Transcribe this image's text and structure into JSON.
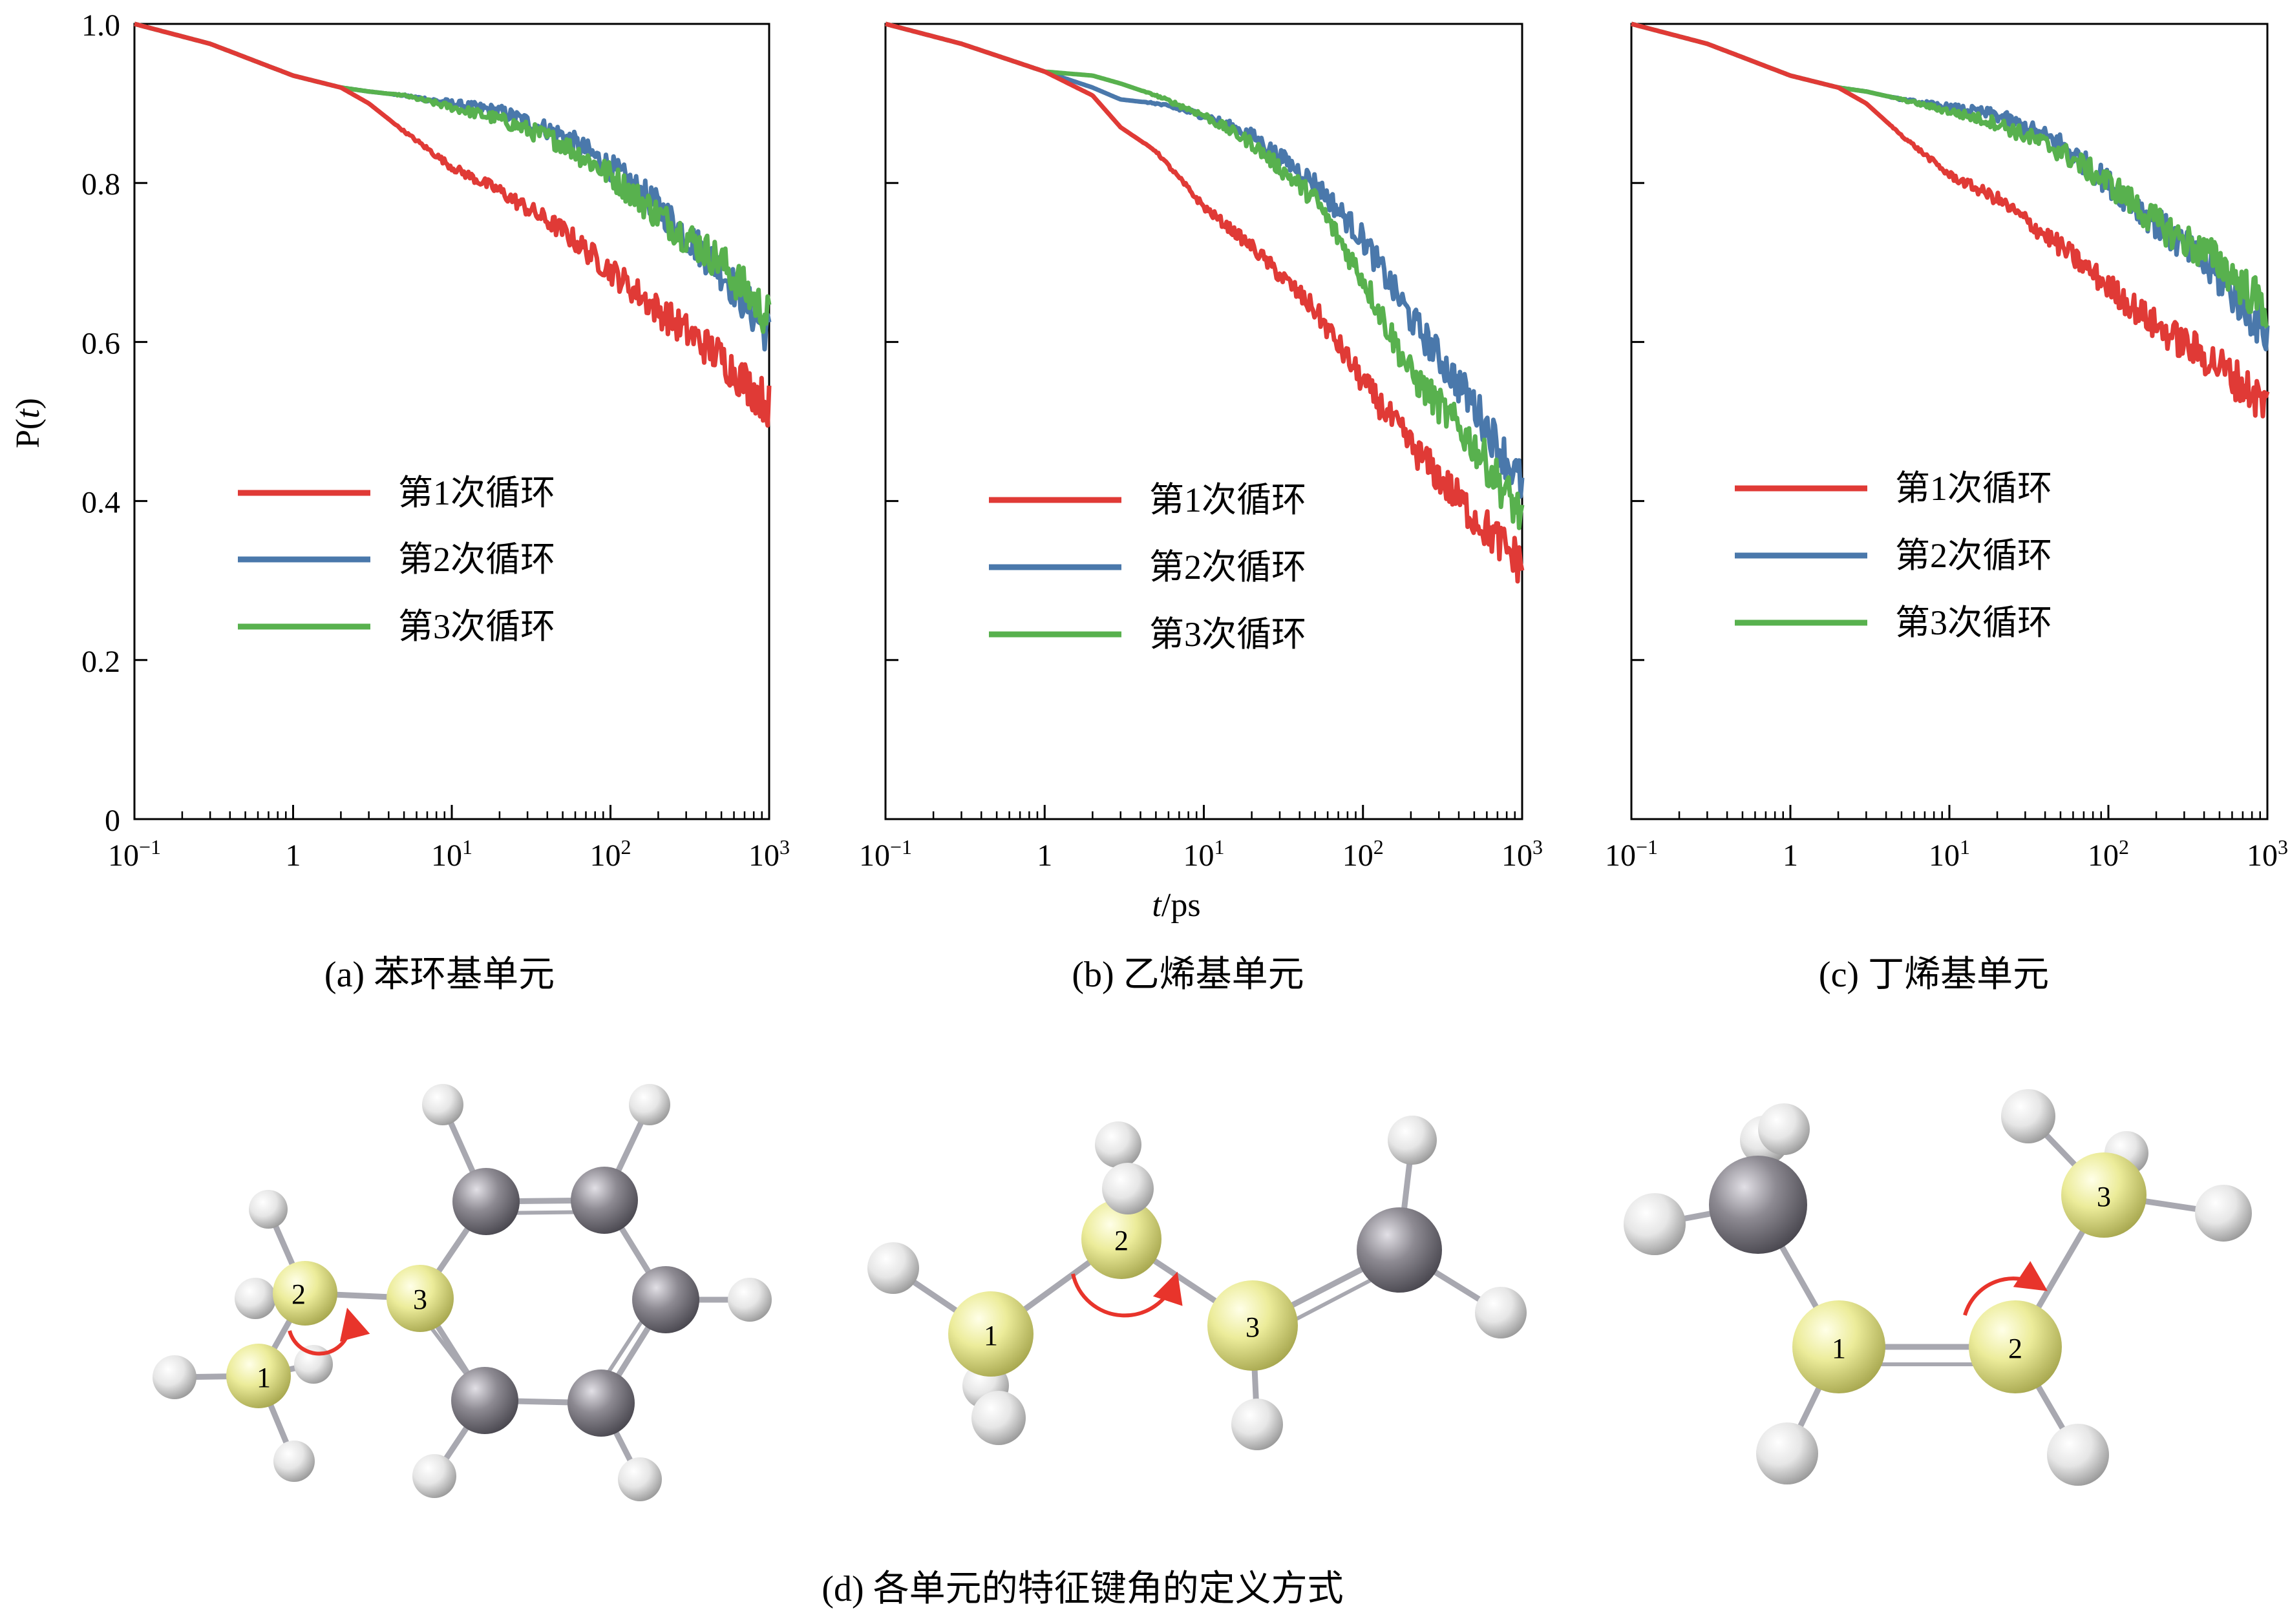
{
  "figure_caption": "(d) 各单元的特征键角的定义方式",
  "colors": {
    "cycle1": "#e03a36",
    "cycle2": "#4a78ab",
    "cycle3": "#58b14e",
    "atom_yellow": "#ecec9a",
    "atom_gray": "#8d8a92",
    "atom_white": "#e8e8e8",
    "angle_arrow": "#e8342b"
  },
  "shared_axis": {
    "x_label_italic": "t",
    "x_label_rest": "/ps",
    "y_label_italic": "t",
    "y_label_prefix": "P(",
    "y_label_suffix": ")",
    "y_ticks": [
      "0",
      "0.2",
      "0.4",
      "0.6",
      "0.8",
      "1.0"
    ],
    "x_tick_bases": [
      "10",
      "1",
      "10",
      "10",
      "10"
    ],
    "x_tick_exponents": [
      "−1",
      "",
      "1",
      "2",
      "3"
    ]
  },
  "chart_data": [
    {
      "type": "line",
      "x_scale": "log",
      "xlim": [
        0.1,
        1000
      ],
      "ylim": [
        0,
        1
      ],
      "caption": "(a) 苯环基单元",
      "legend_position": "middle-left",
      "series": [
        {
          "name": "第1次循环",
          "x": [
            0.1,
            0.3,
            1,
            2,
            3,
            5,
            10,
            20,
            50,
            100,
            200,
            500,
            1000
          ],
          "y": [
            1.0,
            0.975,
            0.935,
            0.92,
            0.9,
            0.865,
            0.82,
            0.79,
            0.74,
            0.69,
            0.64,
            0.58,
            0.52
          ]
        },
        {
          "name": "第2次循环",
          "x": [
            0.1,
            0.3,
            1,
            2,
            3,
            5,
            10,
            20,
            50,
            100,
            200,
            500,
            1000
          ],
          "y": [
            1.0,
            0.975,
            0.935,
            0.92,
            0.915,
            0.91,
            0.9,
            0.89,
            0.86,
            0.82,
            0.77,
            0.69,
            0.61
          ]
        },
        {
          "name": "第3次循环",
          "x": [
            0.1,
            0.3,
            1,
            2,
            3,
            5,
            10,
            20,
            50,
            100,
            200,
            500,
            1000
          ],
          "y": [
            1.0,
            0.975,
            0.935,
            0.92,
            0.915,
            0.91,
            0.895,
            0.88,
            0.85,
            0.81,
            0.76,
            0.7,
            0.63
          ]
        }
      ]
    },
    {
      "type": "line",
      "x_scale": "log",
      "xlim": [
        0.1,
        1000
      ],
      "ylim": [
        0,
        1
      ],
      "caption": "(b) 乙烯基单元",
      "legend_position": "middle-left",
      "series": [
        {
          "name": "第1次循环",
          "x": [
            0.1,
            0.3,
            1,
            2,
            3,
            5,
            10,
            20,
            50,
            100,
            200,
            500,
            1000
          ],
          "y": [
            1.0,
            0.975,
            0.94,
            0.91,
            0.87,
            0.84,
            0.77,
            0.72,
            0.64,
            0.55,
            0.47,
            0.38,
            0.32
          ]
        },
        {
          "name": "第2次循环",
          "x": [
            0.1,
            0.3,
            1,
            2,
            3,
            5,
            10,
            20,
            50,
            100,
            200,
            500,
            1000
          ],
          "y": [
            1.0,
            0.975,
            0.94,
            0.92,
            0.905,
            0.9,
            0.885,
            0.86,
            0.8,
            0.73,
            0.63,
            0.52,
            0.42
          ]
        },
        {
          "name": "第3次循环",
          "x": [
            0.1,
            0.3,
            1,
            2,
            3,
            5,
            10,
            20,
            50,
            100,
            200,
            500,
            1000
          ],
          "y": [
            1.0,
            0.975,
            0.94,
            0.935,
            0.925,
            0.91,
            0.885,
            0.85,
            0.78,
            0.68,
            0.56,
            0.47,
            0.38
          ]
        }
      ]
    },
    {
      "type": "line",
      "x_scale": "log",
      "xlim": [
        0.1,
        1000
      ],
      "ylim": [
        0,
        1
      ],
      "caption": "(c) 丁烯基单元",
      "legend_position": "middle-left",
      "series": [
        {
          "name": "第1次循环",
          "x": [
            0.1,
            0.3,
            1,
            2,
            3,
            5,
            10,
            20,
            50,
            100,
            200,
            500,
            1000
          ],
          "y": [
            1.0,
            0.975,
            0.935,
            0.92,
            0.9,
            0.86,
            0.81,
            0.78,
            0.72,
            0.67,
            0.62,
            0.57,
            0.52
          ]
        },
        {
          "name": "第2次循环",
          "x": [
            0.1,
            0.3,
            1,
            2,
            3,
            5,
            10,
            20,
            50,
            100,
            200,
            500,
            1000
          ],
          "y": [
            1.0,
            0.975,
            0.935,
            0.92,
            0.915,
            0.905,
            0.895,
            0.885,
            0.85,
            0.8,
            0.75,
            0.68,
            0.61
          ]
        },
        {
          "name": "第3次循环",
          "x": [
            0.1,
            0.3,
            1,
            2,
            3,
            5,
            10,
            20,
            50,
            100,
            200,
            500,
            1000
          ],
          "y": [
            1.0,
            0.975,
            0.935,
            0.92,
            0.915,
            0.905,
            0.89,
            0.875,
            0.84,
            0.8,
            0.75,
            0.7,
            0.64
          ]
        }
      ]
    }
  ],
  "molecules": [
    {
      "name": "benzene-unit",
      "atom_labels": [
        "1",
        "2",
        "3"
      ]
    },
    {
      "name": "ethylene-unit",
      "atom_labels": [
        "1",
        "2",
        "3"
      ]
    },
    {
      "name": "butylene-unit",
      "atom_labels": [
        "1",
        "2",
        "3"
      ]
    }
  ]
}
